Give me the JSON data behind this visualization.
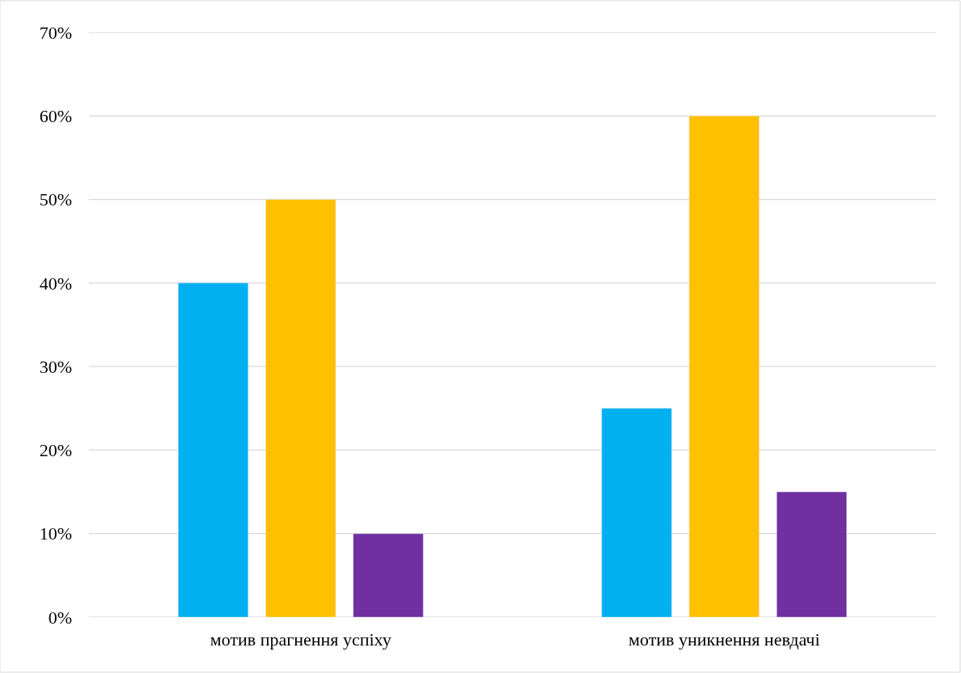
{
  "chart_data": {
    "type": "bar",
    "categories": [
      "мотив прагнення успіху",
      "мотив уникнення невдачі"
    ],
    "series": [
      {
        "color": "#00b0f0",
        "values": [
          40,
          25
        ]
      },
      {
        "color": "#ffc000",
        "values": [
          50,
          60
        ]
      },
      {
        "color": "#7030a0",
        "values": [
          10,
          15
        ]
      }
    ],
    "ylim": [
      0,
      70
    ],
    "yticks": [
      {
        "value": 0,
        "label": "0%"
      },
      {
        "value": 10,
        "label": "10%"
      },
      {
        "value": 20,
        "label": "20%"
      },
      {
        "value": 30,
        "label": "30%"
      },
      {
        "value": 40,
        "label": "40%"
      },
      {
        "value": 50,
        "label": "50%"
      },
      {
        "value": 60,
        "label": "60%"
      },
      {
        "value": 70,
        "label": "70%"
      }
    ],
    "grid": "y"
  }
}
